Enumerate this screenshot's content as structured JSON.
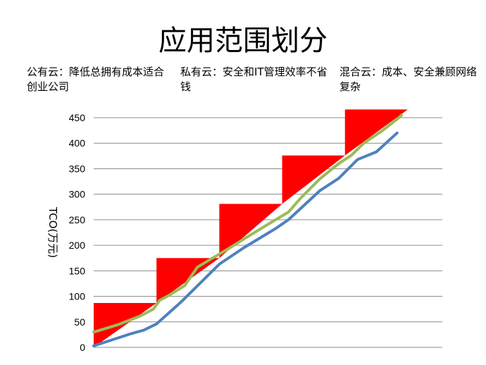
{
  "title": "应用范围划分",
  "descriptions": [
    "公有云：降低总拥有成本适合创业公司",
    "私有云：安全和IT管理效率不省钱",
    "混合云：成本、安全兼顾网络复杂"
  ],
  "chart_data": {
    "type": "line",
    "title": "",
    "xlabel": "",
    "ylabel": "TCO(万元)",
    "ylim": [
      0,
      450
    ],
    "yticks": [
      0,
      50,
      100,
      150,
      200,
      250,
      300,
      350,
      400,
      450
    ],
    "grid": true,
    "legend": "none",
    "colors": {
      "steps": "#ff0000",
      "blue_line": "#4f81bd",
      "green_line": "#9bbb59"
    },
    "step_series": {
      "description": "red stepped triangles",
      "steps": [
        {
          "x_start": 0,
          "x_end": 1,
          "bottom": 0,
          "top": 87
        },
        {
          "x_start": 1,
          "x_end": 2,
          "bottom": 87,
          "top": 175
        },
        {
          "x_start": 2,
          "x_end": 3,
          "bottom": 175,
          "top": 281
        },
        {
          "x_start": 3,
          "x_end": 4,
          "bottom": 281,
          "top": 376
        },
        {
          "x_start": 4,
          "x_end": 5,
          "bottom": 376,
          "top": 466
        }
      ]
    },
    "series": [
      {
        "color": "#4f81bd",
        "points": [
          [
            0,
            3
          ],
          [
            0.3,
            15
          ],
          [
            0.6,
            27
          ],
          [
            0.8,
            34
          ],
          [
            1.0,
            46
          ],
          [
            1.4,
            90
          ],
          [
            2.0,
            163
          ],
          [
            2.4,
            196
          ],
          [
            2.9,
            233
          ],
          [
            3.1,
            250
          ],
          [
            3.6,
            307
          ],
          [
            3.9,
            331
          ],
          [
            4.2,
            368
          ],
          [
            4.5,
            383
          ],
          [
            4.83,
            420
          ]
        ]
      },
      {
        "color": "#9bbb59",
        "points": [
          [
            0,
            30
          ],
          [
            0.4,
            45
          ],
          [
            0.75,
            62
          ],
          [
            0.95,
            75
          ],
          [
            1.05,
            92
          ],
          [
            1.2,
            102
          ],
          [
            1.45,
            121
          ],
          [
            1.65,
            157
          ],
          [
            1.85,
            172
          ],
          [
            2.1,
            190
          ],
          [
            2.4,
            213
          ],
          [
            2.8,
            243
          ],
          [
            3.1,
            265
          ],
          [
            3.3,
            293
          ],
          [
            3.6,
            330
          ],
          [
            3.9,
            360
          ],
          [
            4.1,
            376
          ],
          [
            4.3,
            400
          ],
          [
            4.6,
            425
          ],
          [
            4.85,
            449
          ],
          [
            4.9,
            455
          ]
        ]
      }
    ]
  }
}
